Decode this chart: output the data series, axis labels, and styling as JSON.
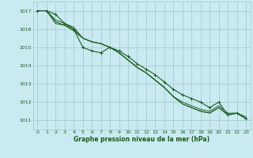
{
  "title": "Graphe pression niveau de la mer (hPa)",
  "background_color": "#c8eaf0",
  "grid_color": "#a0c8d0",
  "line_color": "#1a5c1a",
  "xlim": [
    -0.5,
    23.5
  ],
  "ylim": [
    1010.5,
    1017.5
  ],
  "yticks": [
    1011,
    1012,
    1013,
    1014,
    1015,
    1016,
    1017
  ],
  "xticks": [
    0,
    1,
    2,
    3,
    4,
    5,
    6,
    7,
    8,
    9,
    10,
    11,
    12,
    13,
    14,
    15,
    16,
    17,
    18,
    19,
    20,
    21,
    22,
    23
  ],
  "series": [
    [
      1017.0,
      1017.0,
      1016.8,
      1016.3,
      1016.0,
      1015.0,
      1014.8,
      1014.7,
      1015.0,
      1014.8,
      1014.5,
      1014.1,
      1013.8,
      1013.5,
      1013.1,
      1012.7,
      1012.4,
      1012.2,
      1012.0,
      1011.7,
      1012.0,
      1011.3,
      1011.4,
      1011.1
    ],
    [
      1017.0,
      1017.0,
      1016.5,
      1016.3,
      1016.1,
      1015.5,
      1015.3,
      1015.2,
      1015.0,
      1014.7,
      1014.3,
      1013.9,
      1013.6,
      1013.2,
      1012.8,
      1012.3,
      1012.0,
      1011.8,
      1011.6,
      1011.5,
      1011.8,
      1011.4,
      1011.4,
      1011.2
    ],
    [
      1017.0,
      1017.0,
      1016.4,
      1016.2,
      1016.0,
      1015.5,
      1015.3,
      1015.2,
      1015.0,
      1014.7,
      1014.3,
      1013.9,
      1013.6,
      1013.2,
      1012.8,
      1012.3,
      1011.9,
      1011.7,
      1011.5,
      1011.4,
      1011.7,
      1011.3,
      1011.4,
      1011.1
    ],
    [
      1017.0,
      1017.0,
      1016.3,
      1016.2,
      1015.9,
      1015.5,
      1015.3,
      1015.2,
      1015.0,
      1014.7,
      1014.3,
      1013.9,
      1013.6,
      1013.2,
      1012.8,
      1012.3,
      1011.9,
      1011.7,
      1011.5,
      1011.4,
      1011.7,
      1011.3,
      1011.4,
      1011.1
    ]
  ],
  "tick_fontsize": 4.5,
  "label_fontsize": 5.5
}
